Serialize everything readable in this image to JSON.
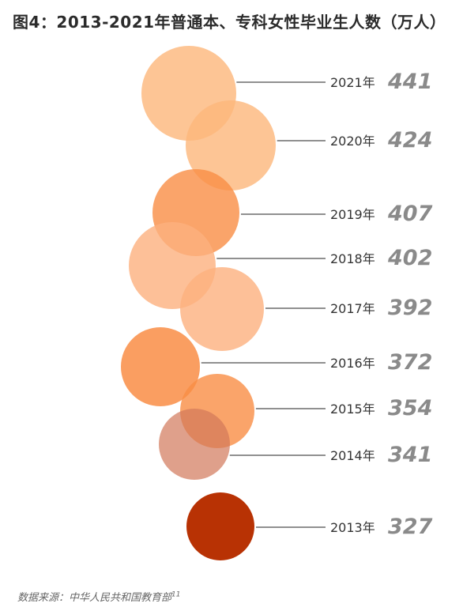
{
  "title": "图4：2013-2021年普通本、专科女性毕业生人数（万人）",
  "source": "数据来源：中华人民共和国教育部",
  "source_ref": "11",
  "chart_data": {
    "type": "bubble",
    "title": "图4：2013-2021年普通本、专科女性毕业生人数（万人）",
    "unit": "万人",
    "points": [
      {
        "year": "2021年",
        "value": 441,
        "color": "#fdb77a",
        "opacity": 0.8
      },
      {
        "year": "2020年",
        "value": 424,
        "color": "#fdb77a",
        "opacity": 0.8
      },
      {
        "year": "2019年",
        "value": 407,
        "color": "#f98d45",
        "opacity": 0.8
      },
      {
        "year": "2018年",
        "value": 402,
        "color": "#fdb07e",
        "opacity": 0.8
      },
      {
        "year": "2017年",
        "value": 392,
        "color": "#fdb07e",
        "opacity": 0.8
      },
      {
        "year": "2016年",
        "value": 372,
        "color": "#f98d45",
        "opacity": 0.85
      },
      {
        "year": "2015年",
        "value": 354,
        "color": "#f98d45",
        "opacity": 0.8
      },
      {
        "year": "2014年",
        "value": 341,
        "color": "#d2775a",
        "opacity": 0.7
      },
      {
        "year": "2013年",
        "value": 327,
        "color": "#b83204",
        "opacity": 1
      }
    ]
  }
}
